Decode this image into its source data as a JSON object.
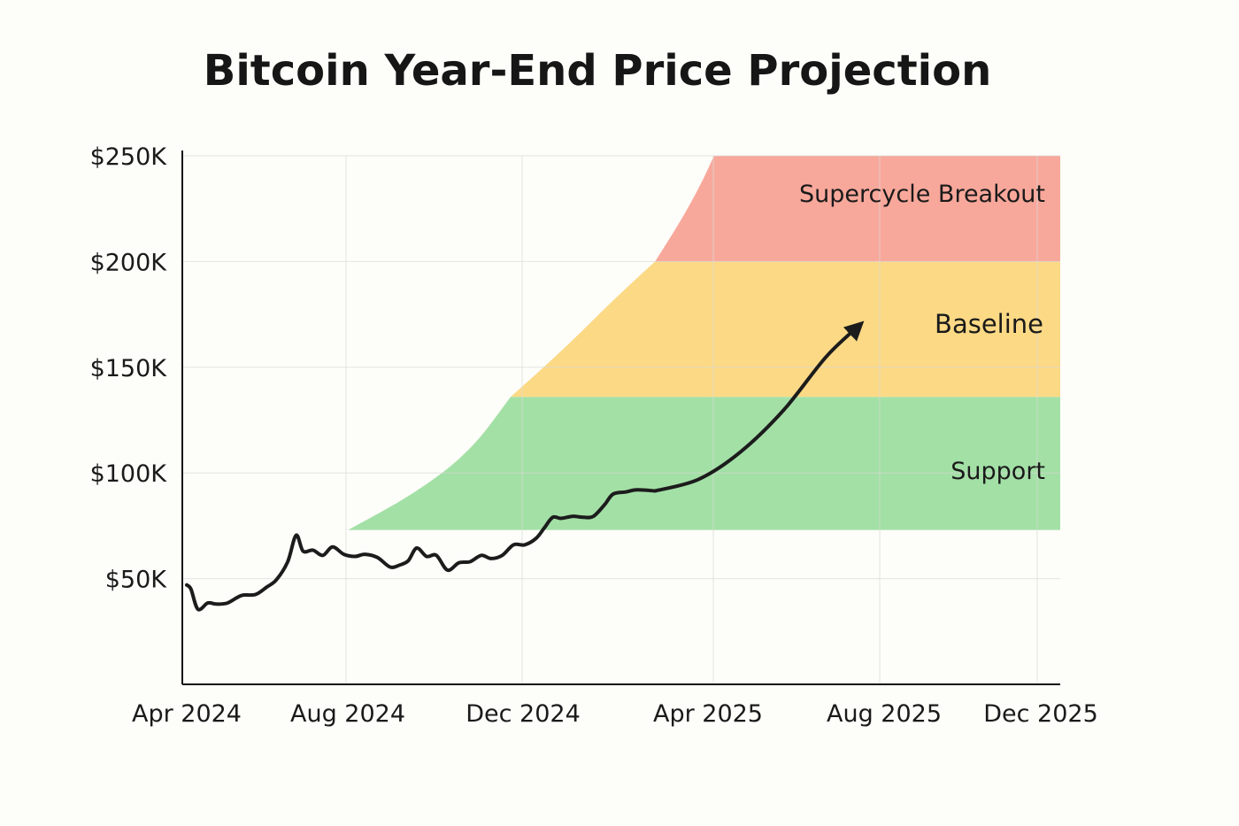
{
  "chart_data": {
    "type": "line",
    "title": "Bitcoin Year-End Price Projection",
    "xlabel": "",
    "ylabel": "",
    "x_range": [
      "2024-04-01",
      "2025-12-31"
    ],
    "y_range": [
      0,
      250000
    ],
    "x_ticks": [
      {
        "label": "Apr 2024",
        "date": "2024-04-01"
      },
      {
        "label": "Aug 2024",
        "date": "2024-08-01"
      },
      {
        "label": "Dec 2024",
        "date": "2024-12-01"
      },
      {
        "label": "Apr 2025",
        "date": "2025-04-01"
      },
      {
        "label": "Aug 2025",
        "date": "2025-08-01"
      },
      {
        "label": "Dec 2025",
        "date": "2025-12-01"
      }
    ],
    "y_ticks": [
      {
        "label": "$50K",
        "value": 50000
      },
      {
        "label": "$100K",
        "value": 100000
      },
      {
        "label": "$150K",
        "value": 150000
      },
      {
        "label": "$200K",
        "value": 200000
      },
      {
        "label": "$250K",
        "value": 250000
      }
    ],
    "grid": true,
    "zones": [
      {
        "name": "Support",
        "color": "#a3e0a6",
        "y_from": 73000,
        "y_to": 136000,
        "left_boundary": [
          [
            "2024-07-25",
            73000
          ],
          [
            "2024-09-10",
            90000
          ],
          [
            "2024-10-20",
            110000
          ],
          [
            "2024-11-18",
            136000
          ]
        ]
      },
      {
        "name": "Baseline",
        "color": "#fcd985",
        "y_from": 136000,
        "y_to": 200000,
        "left_boundary": [
          [
            "2024-11-18",
            136000
          ],
          [
            "2024-12-25",
            158000
          ],
          [
            "2025-02-01",
            183000
          ],
          [
            "2025-03-01",
            200000
          ]
        ]
      },
      {
        "name": "Supercycle Breakout",
        "color": "#f8a89b",
        "y_from": 200000,
        "y_to": 250000,
        "left_boundary": [
          [
            "2025-03-01",
            200000
          ],
          [
            "2025-03-20",
            220000
          ],
          [
            "2025-04-03",
            237000
          ],
          [
            "2025-04-12",
            250000
          ]
        ]
      }
    ],
    "series": [
      {
        "color": "#1c1c1c",
        "points": [
          [
            "2024-04-01",
            47000
          ],
          [
            "2024-04-04",
            45000
          ],
          [
            "2024-04-09",
            35500
          ],
          [
            "2024-04-16",
            38500
          ],
          [
            "2024-04-22",
            38000
          ],
          [
            "2024-04-30",
            38500
          ],
          [
            "2024-05-10",
            42000
          ],
          [
            "2024-05-20",
            42500
          ],
          [
            "2024-05-28",
            46000
          ],
          [
            "2024-06-04",
            49500
          ],
          [
            "2024-06-12",
            58000
          ],
          [
            "2024-06-18",
            70500
          ],
          [
            "2024-06-23",
            63000
          ],
          [
            "2024-06-30",
            63500
          ],
          [
            "2024-07-07",
            61000
          ],
          [
            "2024-07-14",
            65000
          ],
          [
            "2024-07-22",
            61500
          ],
          [
            "2024-07-30",
            60500
          ],
          [
            "2024-08-06",
            61500
          ],
          [
            "2024-08-15",
            60000
          ],
          [
            "2024-08-24",
            55500
          ],
          [
            "2024-08-31",
            56500
          ],
          [
            "2024-09-06",
            58500
          ],
          [
            "2024-09-12",
            64500
          ],
          [
            "2024-09-19",
            60500
          ],
          [
            "2024-09-26",
            61000
          ],
          [
            "2024-10-04",
            54000
          ],
          [
            "2024-10-12",
            57500
          ],
          [
            "2024-10-20",
            58000
          ],
          [
            "2024-10-28",
            61000
          ],
          [
            "2024-11-04",
            59500
          ],
          [
            "2024-11-12",
            61000
          ],
          [
            "2024-11-20",
            66000
          ],
          [
            "2024-11-28",
            66000
          ],
          [
            "2024-12-06",
            69000
          ],
          [
            "2024-12-12",
            74000
          ],
          [
            "2024-12-18",
            79000
          ],
          [
            "2024-12-24",
            78500
          ],
          [
            "2025-01-01",
            79500
          ],
          [
            "2025-01-09",
            79000
          ],
          [
            "2025-01-16",
            79500
          ],
          [
            "2025-01-24",
            85000
          ],
          [
            "2025-01-30",
            90000
          ],
          [
            "2025-02-08",
            91000
          ],
          [
            "2025-02-16",
            92000
          ],
          [
            "2025-03-01",
            91500
          ]
        ]
      },
      {
        "color": "#1c1c1c",
        "arrow": true,
        "points": [
          [
            "2025-03-01",
            91500
          ],
          [
            "2025-04-01",
            97000
          ],
          [
            "2025-05-01",
            110000
          ],
          [
            "2025-06-01",
            130000
          ],
          [
            "2025-07-01",
            155000
          ],
          [
            "2025-07-25",
            170000
          ]
        ]
      }
    ]
  }
}
